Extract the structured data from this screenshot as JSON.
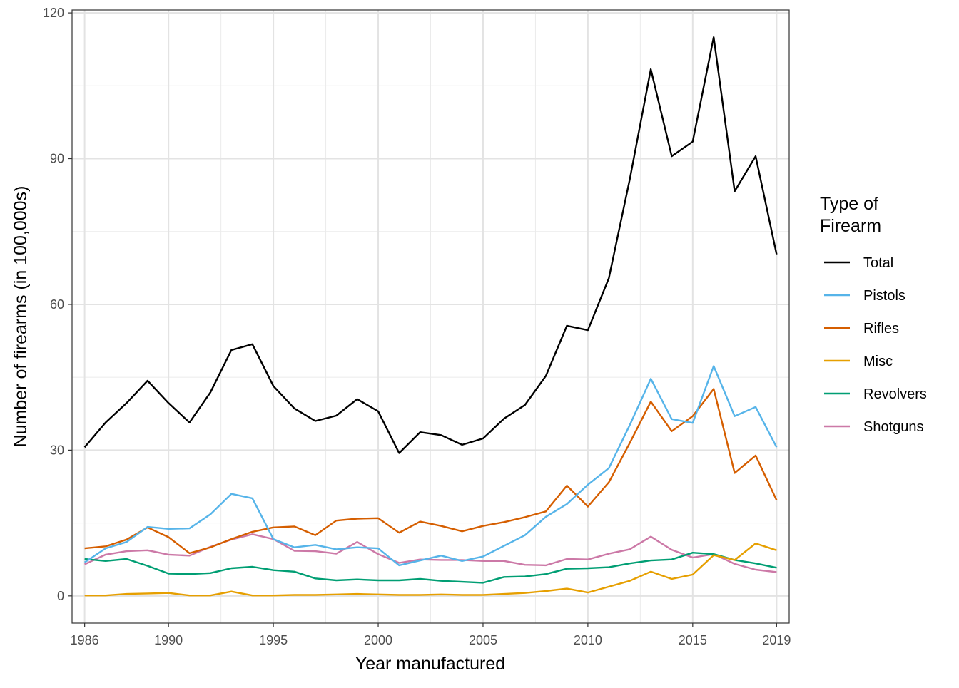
{
  "chart_data": {
    "type": "line",
    "xlabel": "Year manufactured",
    "ylabel": "Number of firearms (in 100,000s)",
    "xlim": [
      1985.4,
      2019.6
    ],
    "ylim": [
      -5.6,
      120.6
    ],
    "x_ticks": [
      1986,
      1990,
      1995,
      2000,
      2005,
      2010,
      2015,
      2019
    ],
    "x_tick_labels": [
      "1986",
      "1990",
      "1995",
      "2000",
      "2005",
      "2010",
      "2015",
      "2019"
    ],
    "y_ticks": [
      0,
      30,
      60,
      90,
      120
    ],
    "y_tick_labels": [
      "0",
      "30",
      "60",
      "90",
      "120"
    ],
    "grid": true,
    "legend_title": [
      "Type of",
      "Firearm"
    ],
    "legend_position": "right",
    "x": [
      1986,
      1987,
      1988,
      1989,
      1990,
      1991,
      1992,
      1993,
      1994,
      1995,
      1996,
      1997,
      1998,
      1999,
      2000,
      2001,
      2002,
      2003,
      2004,
      2005,
      2006,
      2007,
      2008,
      2009,
      2010,
      2011,
      2012,
      2013,
      2014,
      2015,
      2016,
      2017,
      2018,
      2019
    ],
    "series": [
      {
        "name": "Total",
        "color": "#000000",
        "values": [
          30.6,
          35.7,
          39.7,
          44.3,
          39.7,
          35.7,
          41.9,
          50.6,
          51.8,
          43.2,
          38.6,
          36.0,
          37.1,
          40.5,
          38.0,
          29.4,
          33.7,
          33.1,
          31.1,
          32.4,
          36.5,
          39.3,
          45.3,
          55.6,
          54.7,
          65.4,
          85.8,
          108.4,
          90.5,
          93.5,
          115.0,
          83.3,
          90.5,
          70.3
        ]
      },
      {
        "name": "Pistols",
        "color": "#56B4E9",
        "values": [
          6.9,
          9.8,
          11.1,
          14.2,
          13.8,
          13.9,
          16.8,
          21.0,
          20.1,
          11.7,
          10.0,
          10.5,
          9.6,
          10.0,
          9.8,
          6.3,
          7.3,
          8.3,
          7.2,
          8.1,
          10.3,
          12.5,
          16.3,
          18.9,
          22.9,
          26.3,
          35.2,
          44.7,
          36.4,
          35.6,
          47.3,
          37.0,
          38.9,
          30.6
        ]
      },
      {
        "name": "Rifles",
        "color": "#D55E00",
        "values": [
          9.8,
          10.2,
          11.6,
          14.1,
          12.1,
          8.8,
          10.0,
          11.7,
          13.2,
          14.1,
          14.3,
          12.5,
          15.5,
          15.9,
          16.0,
          13.0,
          15.3,
          14.4,
          13.3,
          14.4,
          15.2,
          16.2,
          17.4,
          22.7,
          18.4,
          23.4,
          31.5,
          40.0,
          33.9,
          37.0,
          42.6,
          25.3,
          28.9,
          19.7
        ]
      },
      {
        "name": "Misc",
        "color": "#E69F00",
        "values": [
          0.1,
          0.1,
          0.4,
          0.5,
          0.6,
          0.1,
          0.1,
          0.9,
          0.1,
          0.1,
          0.2,
          0.2,
          0.3,
          0.4,
          0.3,
          0.2,
          0.2,
          0.3,
          0.2,
          0.2,
          0.4,
          0.6,
          1.0,
          1.5,
          0.7,
          1.9,
          3.1,
          5.0,
          3.5,
          4.4,
          8.4,
          7.4,
          10.8,
          9.4
        ]
      },
      {
        "name": "Revolvers",
        "color": "#009E73",
        "values": [
          7.6,
          7.2,
          7.6,
          6.2,
          4.6,
          4.5,
          4.7,
          5.7,
          6.0,
          5.3,
          5.0,
          3.6,
          3.2,
          3.4,
          3.2,
          3.2,
          3.5,
          3.1,
          2.9,
          2.7,
          3.9,
          4.0,
          4.5,
          5.6,
          5.7,
          5.9,
          6.7,
          7.3,
          7.5,
          8.9,
          8.6,
          7.4,
          6.7,
          5.8
        ]
      },
      {
        "name": "Shotguns",
        "color": "#CC79A7",
        "values": [
          6.5,
          8.5,
          9.2,
          9.4,
          8.5,
          8.3,
          10.1,
          11.6,
          12.7,
          11.7,
          9.3,
          9.2,
          8.7,
          11.1,
          8.6,
          6.8,
          7.5,
          7.4,
          7.4,
          7.2,
          7.2,
          6.4,
          6.3,
          7.6,
          7.5,
          8.7,
          9.6,
          12.2,
          9.5,
          7.9,
          8.6,
          6.6,
          5.4,
          4.9
        ]
      }
    ]
  }
}
